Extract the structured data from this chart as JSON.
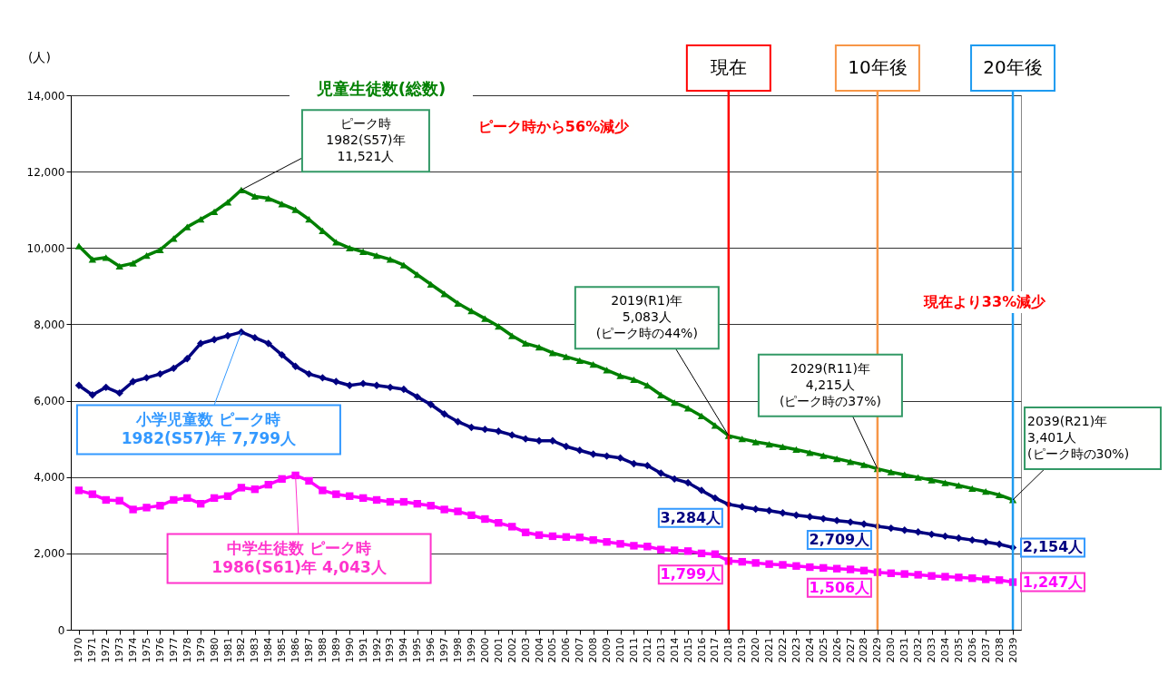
{
  "chart_data": {
    "type": "line",
    "ylabel": "(人)",
    "grid": "y",
    "categories": [
      "1970",
      "1971",
      "1972",
      "1973",
      "1974",
      "1975",
      "1976",
      "1977",
      "1978",
      "1979",
      "1980",
      "1981",
      "1982",
      "1983",
      "1984",
      "1985",
      "1986",
      "1987",
      "1988",
      "1989",
      "1990",
      "1991",
      "1992",
      "1993",
      "1994",
      "1995",
      "1996",
      "1997",
      "1998",
      "1999",
      "2000",
      "2001",
      "2002",
      "2003",
      "2004",
      "2005",
      "2006",
      "2007",
      "2008",
      "2009",
      "2010",
      "2011",
      "2012",
      "2013",
      "2014",
      "2015",
      "2016",
      "2017",
      "2018",
      "2019",
      "2020",
      "2021",
      "2022",
      "2023",
      "2024",
      "2025",
      "2026",
      "2027",
      "2028",
      "2029",
      "2030",
      "2031",
      "2032",
      "2033",
      "2034",
      "2035",
      "2036",
      "2037",
      "2038",
      "2039"
    ],
    "ylim": [
      0,
      14000
    ],
    "yticks": [
      0,
      {
        "value": 2000,
        "label": "2,000"
      },
      {
        "value": 4000,
        "label": "4,000"
      },
      {
        "value": 6000,
        "label": "6,000"
      },
      {
        "value": 8000,
        "label": "8,000"
      },
      {
        "value": 10000,
        "label": "10,000"
      },
      {
        "value": 12000,
        "label": "12,000"
      },
      {
        "value": 14000,
        "label": "14,000"
      }
    ],
    "series": [
      {
        "name": "児童生徒数(総数)",
        "color": "#008000",
        "marker": "triangle",
        "values": [
          10050,
          9700,
          9750,
          9520,
          9600,
          9800,
          9950,
          10250,
          10550,
          10750,
          10950,
          11200,
          11521,
          11350,
          11300,
          11150,
          11000,
          10750,
          10450,
          10150,
          10000,
          9900,
          9800,
          9700,
          9550,
          9300,
          9050,
          8800,
          8550,
          8350,
          8150,
          7950,
          7700,
          7500,
          7400,
          7250,
          7150,
          7050,
          6950,
          6800,
          6650,
          6550,
          6400,
          6150,
          5950,
          5800,
          5600,
          5350,
          5083,
          5000,
          4920,
          4860,
          4790,
          4720,
          4640,
          4560,
          4480,
          4400,
          4320,
          4215,
          4130,
          4060,
          3990,
          3920,
          3850,
          3780,
          3700,
          3620,
          3530,
          3401
        ]
      },
      {
        "color": "#000080",
        "marker": "diamond",
        "values": [
          6400,
          6150,
          6350,
          6200,
          6500,
          6600,
          6700,
          6850,
          7100,
          7500,
          7600,
          7700,
          7799,
          7650,
          7500,
          7200,
          6900,
          6700,
          6600,
          6500,
          6400,
          6450,
          6400,
          6350,
          6300,
          6100,
          5900,
          5650,
          5450,
          5300,
          5250,
          5200,
          5100,
          5000,
          4950,
          4950,
          4800,
          4700,
          4600,
          4550,
          4500,
          4350,
          4300,
          4100,
          3950,
          3850,
          3650,
          3450,
          3284,
          3220,
          3160,
          3120,
          3060,
          3000,
          2960,
          2910,
          2860,
          2820,
          2770,
          2709,
          2660,
          2610,
          2560,
          2500,
          2450,
          2400,
          2350,
          2300,
          2240,
          2154
        ],
        "value_labels": [
          null,
          null,
          null,
          null,
          null,
          null,
          null,
          null,
          null,
          null,
          null,
          null,
          null,
          null,
          null,
          null,
          null,
          null,
          null,
          null,
          null,
          null,
          null,
          null,
          null,
          null,
          null,
          null,
          null,
          null,
          null,
          null,
          null,
          null,
          null,
          null,
          null,
          null,
          null,
          null,
          null,
          null,
          null,
          null,
          null,
          null,
          null,
          null,
          "3,284人",
          null,
          null,
          null,
          null,
          null,
          null,
          null,
          null,
          null,
          null,
          "2,709人",
          null,
          null,
          null,
          null,
          null,
          null,
          null,
          null,
          null,
          "2,154人"
        ]
      },
      {
        "color": "#ff00ff",
        "marker": "square",
        "values": [
          3650,
          3550,
          3400,
          3380,
          3150,
          3200,
          3250,
          3400,
          3450,
          3300,
          3450,
          3500,
          3722,
          3680,
          3800,
          3950,
          4043,
          3900,
          3650,
          3550,
          3500,
          3450,
          3400,
          3350,
          3350,
          3300,
          3250,
          3150,
          3100,
          3000,
          2900,
          2800,
          2700,
          2550,
          2480,
          2450,
          2430,
          2420,
          2350,
          2300,
          2250,
          2200,
          2180,
          2100,
          2080,
          2060,
          2000,
          1980,
          1799,
          1780,
          1750,
          1720,
          1700,
          1670,
          1640,
          1620,
          1600,
          1580,
          1550,
          1506,
          1480,
          1460,
          1440,
          1410,
          1390,
          1370,
          1350,
          1320,
          1300,
          1247
        ],
        "value_labels": [
          null,
          null,
          null,
          null,
          null,
          null,
          null,
          null,
          null,
          null,
          null,
          null,
          null,
          null,
          null,
          null,
          null,
          null,
          null,
          null,
          null,
          null,
          null,
          null,
          null,
          null,
          null,
          null,
          null,
          null,
          null,
          null,
          null,
          null,
          null,
          null,
          null,
          null,
          null,
          null,
          null,
          null,
          null,
          null,
          null,
          null,
          null,
          null,
          "1,799人",
          null,
          null,
          null,
          null,
          null,
          null,
          null,
          null,
          null,
          null,
          "1,506人",
          null,
          null,
          null,
          null,
          null,
          null,
          null,
          null,
          null,
          "1,247人"
        ]
      }
    ],
    "ref_lines": [
      {
        "axis": "x",
        "value": "2018",
        "label": "現在",
        "color": "#ff0000"
      },
      {
        "axis": "x",
        "value": "2029",
        "label": "10年後",
        "color": "#f79646"
      },
      {
        "axis": "x",
        "value": "2039",
        "label": "20年後",
        "color": "#1e9bf0"
      }
    ],
    "annotations": [
      {
        "text": "ピーク時\n1982(S57)年\n11,521人",
        "x": "1982",
        "y": 11521
      },
      "ピーク時から56%減少",
      {
        "text": "2019(R1)年\n5,083人\n(ピーク時の44%)",
        "x": "2018",
        "y": 5083
      },
      "現在より33%減少",
      {
        "text": "2029(R11)年\n4,215人\n(ピーク時の37%)",
        "x": "2029",
        "y": 4215
      },
      {
        "text": "2039(R21)年\n3,401人\n(ピーク時の30%)",
        "x": "2039",
        "y": 3401
      },
      {
        "text": "小学児童数 ピーク時\n1982(S57)年 7,799人",
        "x": "1982",
        "y": 7799
      },
      {
        "text": "中学生徒数 ピーク時\n1986(S61)年 4,043人",
        "x": "1986",
        "y": 4043
      }
    ]
  }
}
